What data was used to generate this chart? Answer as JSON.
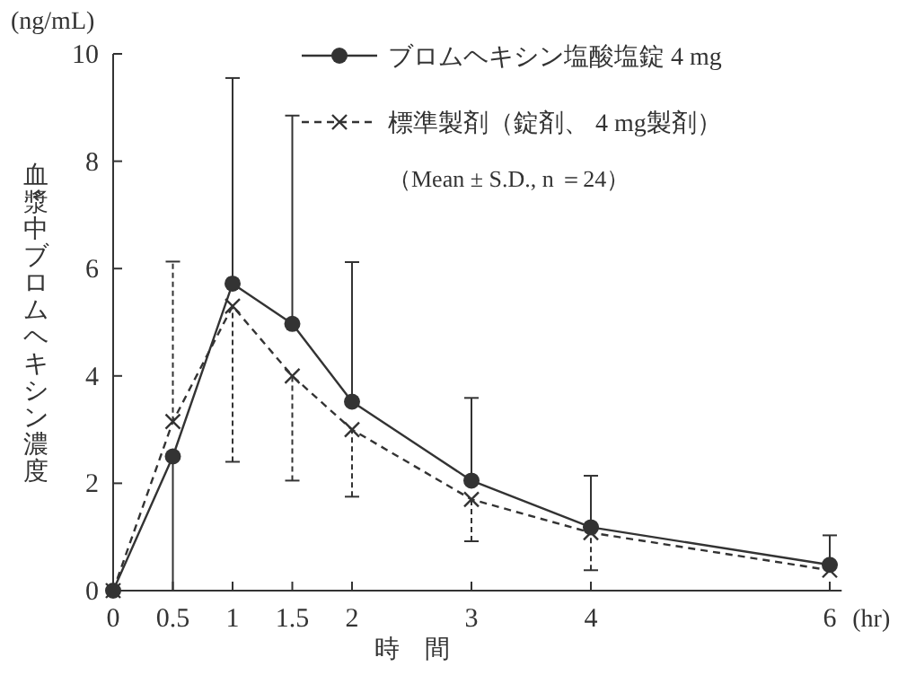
{
  "chart_data": {
    "type": "line",
    "xlabel": "時　間",
    "ylabel": "血漿中ブロムヘキシン濃度",
    "annotations": [
      "(ng/mL)",
      "(hr)",
      "（Mean ± S.D., n ＝24）"
    ],
    "x": [
      0,
      0.5,
      1,
      1.5,
      2,
      3,
      4,
      6
    ],
    "series": [
      {
        "name": "ブロムヘキシン塩酸塩錠 4 mg",
        "color": "#333333",
        "marker": "circle",
        "line_style": "solid",
        "values": [
          0,
          2.5,
          5.72,
          4.97,
          3.52,
          2.05,
          1.18,
          0.48
        ],
        "errors": [
          null,
          [
            0,
            2.5
          ],
          [
            5.72,
            9.55
          ],
          [
            4.97,
            8.85
          ],
          [
            3.52,
            6.12
          ],
          [
            2.05,
            3.59
          ],
          [
            1.18,
            2.14
          ],
          [
            0.48,
            1.03
          ]
        ]
      },
      {
        "name": "標準製剤（錠剤、 4 mg製剤）",
        "color": "#333333",
        "marker": "cross",
        "line_style": "dashed",
        "values": [
          0,
          3.15,
          5.3,
          4.0,
          3.0,
          1.7,
          1.08,
          0.38
        ],
        "errors": [
          null,
          [
            3.15,
            6.13
          ],
          [
            2.4,
            5.3
          ],
          [
            2.05,
            4.0
          ],
          [
            1.75,
            3.0
          ],
          [
            0.92,
            1.7
          ],
          [
            0.38,
            1.08
          ],
          null
        ]
      }
    ],
    "xlim": [
      0,
      6.1
    ],
    "ylim": [
      0,
      10
    ],
    "xticks": [
      0,
      0.5,
      1,
      1.5,
      2,
      3,
      4,
      6
    ],
    "yticks": [
      0,
      2,
      4,
      6,
      8,
      10
    ],
    "grid": false,
    "legend": "top right"
  }
}
